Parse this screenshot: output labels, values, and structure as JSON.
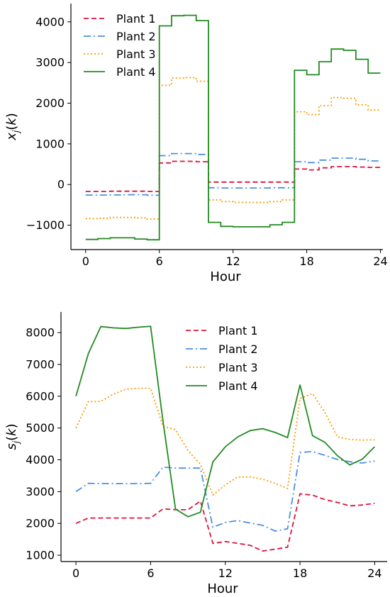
{
  "chart_data": [
    {
      "type": "line",
      "step": true,
      "xlabel": "Hour",
      "ylabel": "x_j(k)",
      "xticks": [
        0,
        6,
        12,
        18,
        24
      ],
      "yticks": [
        -1000,
        0,
        1000,
        2000,
        3000,
        4000
      ],
      "xlim": [
        -1.2,
        24.2
      ],
      "ylim": [
        -1600,
        4450
      ],
      "legend_position": "top-left",
      "x": [
        0,
        1,
        2,
        3,
        4,
        5,
        6,
        7,
        8,
        9,
        10,
        11,
        12,
        13,
        14,
        15,
        16,
        17,
        18,
        19,
        20,
        21,
        22,
        23
      ],
      "series": [
        {
          "name": "Plant 1",
          "color": "#dc143c",
          "dash": "7,4",
          "values": [
            -170,
            -170,
            -165,
            -165,
            -165,
            -170,
            530,
            570,
            570,
            560,
            60,
            60,
            60,
            60,
            60,
            60,
            60,
            380,
            360,
            410,
            440,
            440,
            430,
            420
          ]
        },
        {
          "name": "Plant 2",
          "color": "#4a90e2",
          "dash": "10,4,2,4",
          "values": [
            -260,
            -260,
            -255,
            -250,
            -250,
            -265,
            710,
            760,
            760,
            740,
            -80,
            -85,
            -85,
            -85,
            -85,
            -80,
            -80,
            560,
            540,
            600,
            650,
            650,
            620,
            580
          ]
        },
        {
          "name": "Plant 3",
          "color": "#ff9900",
          "dash": "2,3",
          "values": [
            -840,
            -830,
            -810,
            -810,
            -820,
            -850,
            2440,
            2620,
            2630,
            2540,
            -380,
            -420,
            -440,
            -440,
            -440,
            -420,
            -380,
            1790,
            1720,
            1940,
            2140,
            2120,
            1960,
            1830
          ]
        },
        {
          "name": "Plant 4",
          "color": "#228b22",
          "dash": "",
          "values": [
            -1350,
            -1330,
            -1310,
            -1310,
            -1340,
            -1360,
            3900,
            4150,
            4160,
            4030,
            -930,
            -1030,
            -1040,
            -1040,
            -1040,
            -990,
            -930,
            2810,
            2700,
            3020,
            3330,
            3300,
            3080,
            2740
          ]
        }
      ]
    },
    {
      "type": "line",
      "xlabel": "Hour",
      "ylabel": "s_j(k)",
      "xticks": [
        0,
        6,
        12,
        18,
        24
      ],
      "yticks": [
        1000,
        2000,
        3000,
        4000,
        5000,
        6000,
        7000,
        8000
      ],
      "xlim": [
        -1.2,
        25
      ],
      "ylim": [
        800,
        8650
      ],
      "legend_position": "top-center",
      "x": [
        0,
        1,
        2,
        3,
        4,
        5,
        6,
        7,
        8,
        9,
        10,
        11,
        12,
        13,
        14,
        15,
        16,
        17,
        18,
        19,
        20,
        21,
        22,
        23,
        24
      ],
      "series": [
        {
          "name": "Plant 1",
          "color": "#dc143c",
          "dash": "7,4",
          "values": [
            2000,
            2170,
            2170,
            2170,
            2170,
            2170,
            2170,
            2460,
            2430,
            2430,
            2700,
            1370,
            1430,
            1370,
            1310,
            1130,
            1190,
            1250,
            2930,
            2890,
            2750,
            2660,
            2550,
            2580,
            2630
          ]
        },
        {
          "name": "Plant 2",
          "color": "#4a90e2",
          "dash": "10,4,2,4",
          "values": [
            3000,
            3260,
            3250,
            3250,
            3250,
            3250,
            3260,
            3770,
            3740,
            3740,
            3740,
            1880,
            2030,
            2090,
            2010,
            1940,
            1760,
            1830,
            4230,
            4260,
            4140,
            4010,
            3940,
            3900,
            3960
          ]
        },
        {
          "name": "Plant 3",
          "color": "#ff9900",
          "dash": "2,3",
          "values": [
            5000,
            5830,
            5840,
            6060,
            6220,
            6250,
            6250,
            5050,
            4950,
            4290,
            3860,
            2890,
            3210,
            3460,
            3460,
            3390,
            3260,
            3100,
            5930,
            6080,
            5490,
            4720,
            4640,
            4620,
            4630
          ]
        },
        {
          "name": "Plant 4",
          "color": "#228b22",
          "dash": "",
          "values": [
            6000,
            7340,
            8190,
            8150,
            8130,
            8170,
            8200,
            5190,
            2450,
            2210,
            2350,
            3930,
            4410,
            4720,
            4920,
            4980,
            4860,
            4700,
            6360,
            4760,
            4550,
            4130,
            3840,
            4020,
            4410
          ]
        }
      ]
    }
  ]
}
